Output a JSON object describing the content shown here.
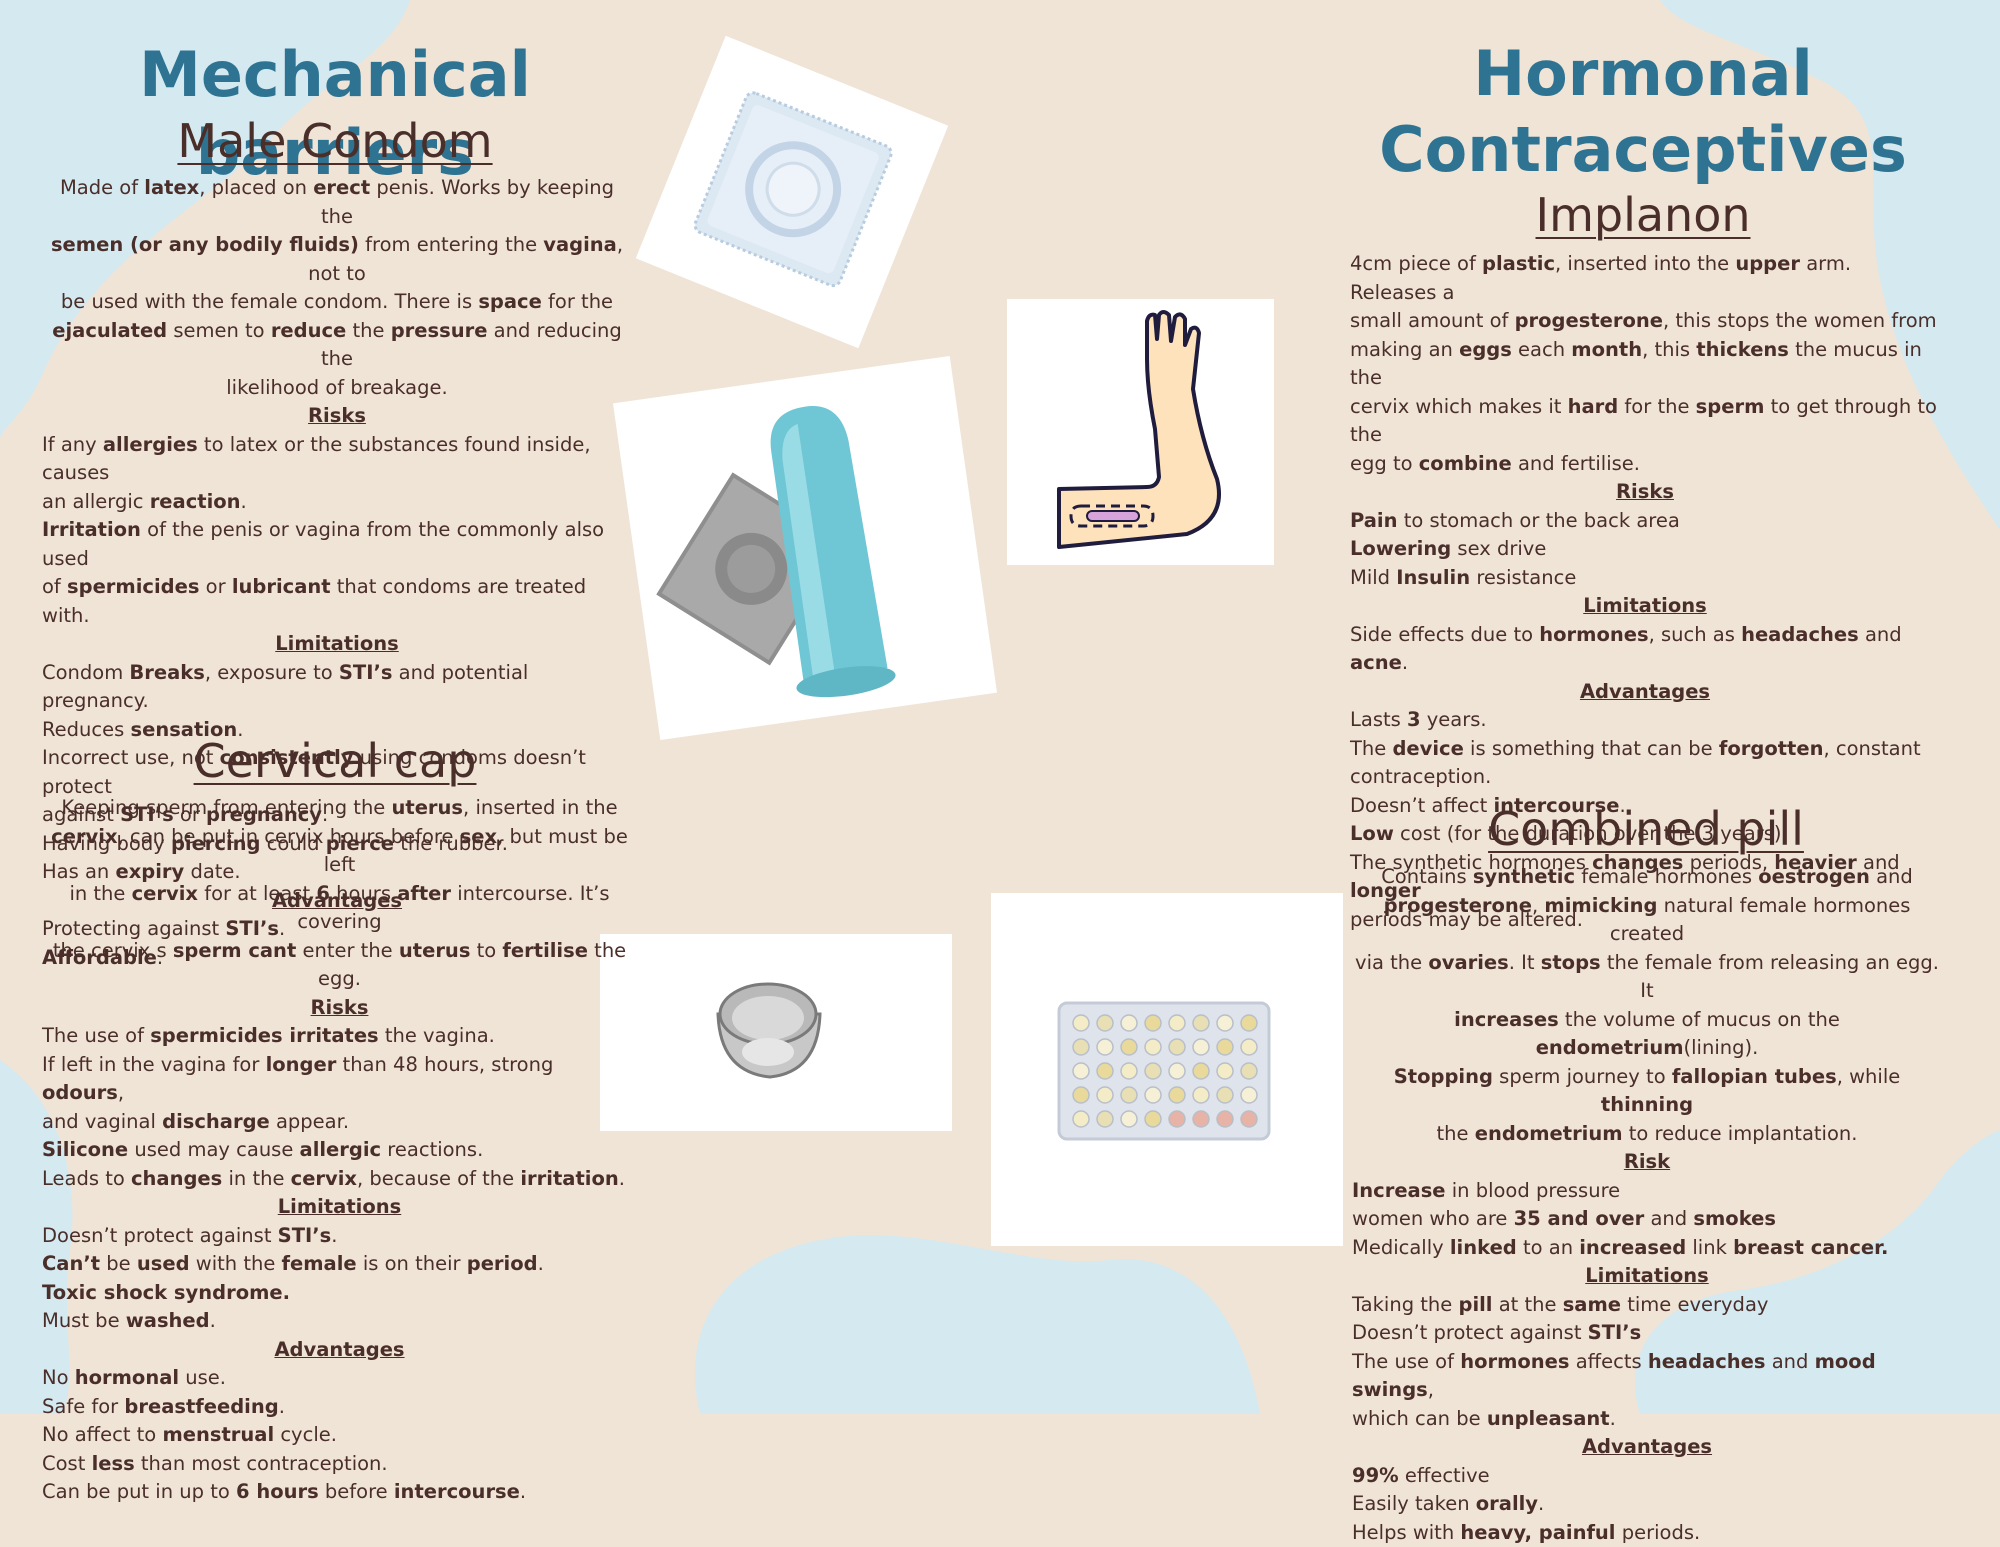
{
  "left": {
    "title": "Mechanical barriers",
    "condom": {
      "title": "Male Condom",
      "desc": [
        [
          [
            "Made of ",
            0
          ],
          [
            "latex",
            1
          ],
          [
            ", placed on ",
            0
          ],
          [
            "erect",
            1
          ],
          [
            " penis. Works by keeping the ",
            0
          ]
        ],
        [
          [
            "semen (or any bodily fluids)",
            1
          ],
          [
            " from entering the ",
            0
          ],
          [
            "vagina",
            1
          ],
          [
            ", not to",
            0
          ]
        ],
        [
          [
            "be used with the female condom. There is ",
            0
          ],
          [
            "space",
            1
          ],
          [
            " for the",
            0
          ]
        ],
        [
          [
            "ejaculated",
            1
          ],
          [
            " semen to ",
            0
          ],
          [
            "reduce",
            1
          ],
          [
            " the ",
            0
          ],
          [
            "pressure",
            1
          ],
          [
            " and reducing the",
            0
          ]
        ],
        [
          [
            "likelihood of breakage.",
            0
          ]
        ]
      ],
      "risks_label": "Risks",
      "risks": [
        [
          [
            "If any ",
            0
          ],
          [
            "allergies",
            1
          ],
          [
            " to latex or the substances found inside, causes",
            0
          ]
        ],
        [
          [
            "an allergic ",
            0
          ],
          [
            "reaction",
            1
          ],
          [
            ".",
            0
          ]
        ],
        [
          [
            "Irritation",
            1
          ],
          [
            " of the penis or vagina from the commonly also used",
            0
          ]
        ],
        [
          [
            "of ",
            0
          ],
          [
            "spermicides",
            1
          ],
          [
            " or ",
            0
          ],
          [
            "lubricant",
            1
          ],
          [
            " that condoms are treated with.",
            0
          ]
        ]
      ],
      "limitations_label": "Limitations",
      "limitations": [
        [
          [
            "Condom ",
            0
          ],
          [
            "Breaks",
            1
          ],
          [
            ", exposure to ",
            0
          ],
          [
            "STI’s",
            1
          ],
          [
            " and potential pregnancy.",
            0
          ]
        ],
        [
          [
            "Reduces ",
            0
          ],
          [
            "sensation",
            1
          ],
          [
            ".",
            0
          ]
        ],
        [
          [
            "Incorrect use, not ",
            0
          ],
          [
            "consistently",
            1
          ],
          [
            " using condoms doesn’t protect",
            0
          ]
        ],
        [
          [
            "against ",
            0
          ],
          [
            "STI’s",
            1
          ],
          [
            " or ",
            0
          ],
          [
            "pregnancy",
            1
          ],
          [
            ".",
            0
          ]
        ],
        [
          [
            "Having body ",
            0
          ],
          [
            "piercing",
            1
          ],
          [
            " could ",
            0
          ],
          [
            "pierce",
            1
          ],
          [
            " the rubber.",
            0
          ]
        ],
        [
          [
            "Has an ",
            0
          ],
          [
            "expiry",
            1
          ],
          [
            " date.",
            0
          ]
        ]
      ],
      "advantages_label": "Advantages",
      "advantages": [
        [
          [
            "Protecting against ",
            0
          ],
          [
            "STI’s",
            1
          ],
          [
            ".",
            0
          ]
        ],
        [
          [
            "Affordable",
            1
          ],
          [
            ".",
            0
          ]
        ]
      ]
    },
    "cap": {
      "title": "Cervical cap",
      "desc": [
        [
          [
            "Keeping sperm from entering the ",
            0
          ],
          [
            "uterus",
            1
          ],
          [
            ", inserted in the",
            0
          ]
        ],
        [
          [
            "cervix",
            1
          ],
          [
            ", can be put in cervix hours before ",
            0
          ],
          [
            "sex",
            1
          ],
          [
            ", but must be left",
            0
          ]
        ],
        [
          [
            "in the ",
            0
          ],
          [
            "cervix",
            1
          ],
          [
            " for at least ",
            0
          ],
          [
            "6",
            1
          ],
          [
            " hours ",
            0
          ],
          [
            "after",
            1
          ],
          [
            " intercourse. It’s covering",
            0
          ]
        ],
        [
          [
            "the cervix s ",
            0
          ],
          [
            "sperm cant",
            1
          ],
          [
            " enter the ",
            0
          ],
          [
            "uterus",
            1
          ],
          [
            " to ",
            0
          ],
          [
            "fertilise",
            1
          ],
          [
            " the egg.",
            0
          ]
        ]
      ],
      "risks_label": "Risks",
      "risks": [
        [
          [
            "The use of ",
            0
          ],
          [
            "spermicides irritates",
            1
          ],
          [
            " the vagina.",
            0
          ]
        ],
        [
          [
            "If left in the vagina for ",
            0
          ],
          [
            "longer",
            1
          ],
          [
            " than 48 hours, strong ",
            0
          ],
          [
            "odours",
            1
          ],
          [
            ",",
            0
          ]
        ],
        [
          [
            "and vaginal ",
            0
          ],
          [
            "discharge",
            1
          ],
          [
            " appear.",
            0
          ]
        ],
        [
          [
            "Silicone",
            1
          ],
          [
            " used may cause ",
            0
          ],
          [
            "allergic",
            1
          ],
          [
            " reactions.",
            0
          ]
        ],
        [
          [
            "Leads to ",
            0
          ],
          [
            "changes",
            1
          ],
          [
            " in the ",
            0
          ],
          [
            "cervix",
            1
          ],
          [
            ", because of the ",
            0
          ],
          [
            "irritation",
            1
          ],
          [
            ".",
            0
          ]
        ]
      ],
      "limitations_label": "Limitations",
      "limitations": [
        [
          [
            "Doesn’t protect against ",
            0
          ],
          [
            "STI’s",
            1
          ],
          [
            ".",
            0
          ]
        ],
        [
          [
            "Can’t",
            1
          ],
          [
            " be ",
            0
          ],
          [
            "used",
            1
          ],
          [
            " with the ",
            0
          ],
          [
            "female",
            1
          ],
          [
            " is on their ",
            0
          ],
          [
            "period",
            1
          ],
          [
            ".",
            0
          ]
        ],
        [
          [
            "Toxic shock syndrome.",
            1
          ]
        ],
        [
          [
            "Must be ",
            0
          ],
          [
            "washed",
            1
          ],
          [
            ".",
            0
          ]
        ]
      ],
      "advantages_label": "Advantages",
      "advantages": [
        [
          [
            "No ",
            0
          ],
          [
            "hormonal",
            1
          ],
          [
            " use.",
            0
          ]
        ],
        [
          [
            "Safe for ",
            0
          ],
          [
            "breastfeeding",
            1
          ],
          [
            ".",
            0
          ]
        ],
        [
          [
            "No affect to ",
            0
          ],
          [
            "menstrual",
            1
          ],
          [
            " cycle.",
            0
          ]
        ],
        [
          [
            "Cost ",
            0
          ],
          [
            "less",
            1
          ],
          [
            " than most contraception.",
            0
          ]
        ],
        [
          [
            "Can be put in up to ",
            0
          ],
          [
            "6 hours",
            1
          ],
          [
            " before ",
            0
          ],
          [
            "intercourse",
            1
          ],
          [
            ".",
            0
          ]
        ]
      ]
    }
  },
  "right": {
    "title_line1": "Hormonal",
    "title_line2": "Contraceptives",
    "implanon": {
      "title": "Implanon",
      "desc": [
        [
          [
            "4cm piece of ",
            0
          ],
          [
            "plastic",
            1
          ],
          [
            ", inserted into the ",
            0
          ],
          [
            "upper",
            1
          ],
          [
            " arm. Releases a",
            0
          ]
        ],
        [
          [
            "small amount of ",
            0
          ],
          [
            "progesterone",
            1
          ],
          [
            ", this stops the women from",
            0
          ]
        ],
        [
          [
            "making an ",
            0
          ],
          [
            "eggs",
            1
          ],
          [
            " each ",
            0
          ],
          [
            "month",
            1
          ],
          [
            ", this ",
            0
          ],
          [
            "thickens",
            1
          ],
          [
            " the mucus in the",
            0
          ]
        ],
        [
          [
            "cervix which makes it ",
            0
          ],
          [
            "hard",
            1
          ],
          [
            " for the ",
            0
          ],
          [
            "sperm",
            1
          ],
          [
            " to get through to the",
            0
          ]
        ],
        [
          [
            "egg to ",
            0
          ],
          [
            "combine",
            1
          ],
          [
            " and fertilise.",
            0
          ]
        ]
      ],
      "risks_label": "Risks",
      "risks": [
        [
          [
            "Pain",
            1
          ],
          [
            " to stomach or the back area",
            0
          ]
        ],
        [
          [
            "Lowering",
            1
          ],
          [
            " sex drive",
            0
          ]
        ],
        [
          [
            "Mild ",
            0
          ],
          [
            "Insulin",
            1
          ],
          [
            " resistance",
            0
          ]
        ]
      ],
      "limitations_label": "Limitations",
      "limitations": [
        [
          [
            "Side effects due to ",
            0
          ],
          [
            "hormones",
            1
          ],
          [
            ", such as ",
            0
          ],
          [
            "headaches",
            1
          ],
          [
            " and ",
            0
          ],
          [
            "acne",
            1
          ],
          [
            ".",
            0
          ]
        ]
      ],
      "advantages_label": "Advantages",
      "advantages": [
        [
          [
            "Lasts ",
            0
          ],
          [
            "3",
            1
          ],
          [
            " years.",
            0
          ]
        ],
        [
          [
            "The ",
            0
          ],
          [
            "device",
            1
          ],
          [
            " is something that can be ",
            0
          ],
          [
            "forgotten",
            1
          ],
          [
            ", constant",
            0
          ]
        ],
        [
          [
            "contraception.",
            0
          ]
        ],
        [
          [
            "Doesn’t affect ",
            0
          ],
          [
            "intercourse",
            1
          ],
          [
            ".",
            0
          ]
        ],
        [
          [
            "Low",
            1
          ],
          [
            " cost (for the duration over the 3 years)",
            0
          ]
        ],
        [
          [
            "The synthetic hormones ",
            0
          ],
          [
            "changes",
            1
          ],
          [
            " periods, ",
            0
          ],
          [
            "heavier",
            1
          ],
          [
            " and ",
            0
          ],
          [
            "longer",
            1
          ]
        ],
        [
          [
            "periods may be altered.",
            0
          ]
        ]
      ]
    },
    "pill": {
      "title": "Combined pill",
      "desc": [
        [
          [
            "Contains ",
            0
          ],
          [
            "synthetic",
            1
          ],
          [
            " female hormones ",
            0
          ],
          [
            "oestrogen",
            1
          ],
          [
            " and",
            0
          ]
        ],
        [
          [
            "progesterone",
            1
          ],
          [
            ", ",
            0
          ],
          [
            "mimicking",
            1
          ],
          [
            " natural female hormones created",
            0
          ]
        ],
        [
          [
            "via the ",
            0
          ],
          [
            "ovaries",
            1
          ],
          [
            ". It ",
            0
          ],
          [
            "stops",
            1
          ],
          [
            " the female from releasing an egg. It",
            0
          ]
        ],
        [
          [
            "increases",
            1
          ],
          [
            " the volume of mucus on the ",
            0
          ],
          [
            "endometrium",
            1
          ],
          [
            "(lining).",
            0
          ]
        ],
        [
          [
            "Stopping",
            1
          ],
          [
            " sperm journey to ",
            0
          ],
          [
            "fallopian tubes",
            1
          ],
          [
            ", while ",
            0
          ],
          [
            "thinning",
            1
          ]
        ],
        [
          [
            "the ",
            0
          ],
          [
            "endometrium",
            1
          ],
          [
            " to reduce implantation.",
            0
          ]
        ]
      ],
      "risks_label": "Risk",
      "risks": [
        [
          [
            "Increase",
            1
          ],
          [
            " in blood pressure",
            0
          ]
        ],
        [
          [
            "women who are ",
            0
          ],
          [
            "35 and over",
            1
          ],
          [
            " and ",
            0
          ],
          [
            "smokes",
            1
          ]
        ],
        [
          [
            "Medically ",
            0
          ],
          [
            "linked",
            1
          ],
          [
            " to an ",
            0
          ],
          [
            "increased",
            1
          ],
          [
            " link ",
            0
          ],
          [
            "breast cancer.",
            1
          ]
        ]
      ],
      "limitations_label": "Limitations",
      "limitations": [
        [
          [
            "Taking the ",
            0
          ],
          [
            "pill",
            1
          ],
          [
            " at the ",
            0
          ],
          [
            "same",
            1
          ],
          [
            " time everyday",
            0
          ]
        ],
        [
          [
            "Doesn’t protect against ",
            0
          ],
          [
            "STI’s",
            1
          ]
        ],
        [
          [
            "The use of ",
            0
          ],
          [
            "hormones",
            1
          ],
          [
            " affects ",
            0
          ],
          [
            "headaches",
            1
          ],
          [
            " and ",
            0
          ],
          [
            "mood swings",
            1
          ],
          [
            ",",
            0
          ]
        ],
        [
          [
            "which can be ",
            0
          ],
          [
            "unpleasant",
            1
          ],
          [
            ".",
            0
          ]
        ]
      ],
      "advantages_label": "Advantages",
      "advantages": [
        [
          [
            "99%",
            1
          ],
          [
            " effective",
            0
          ]
        ],
        [
          [
            "Easily taken ",
            0
          ],
          [
            "orally",
            1
          ],
          [
            ".",
            0
          ]
        ],
        [
          [
            "Helps with ",
            0
          ],
          [
            "heavy, painful",
            1
          ],
          [
            " periods.",
            0
          ]
        ]
      ]
    }
  },
  "colors": {
    "background": "#f0e4d7",
    "blob": "#d4e9f0",
    "heading": "#2e7492",
    "text": "#4a2e2a"
  },
  "images": [
    "condom-wrapper-image",
    "condom-image",
    "implant-arm-image",
    "cervical-cap-image",
    "pill-pack-image"
  ]
}
